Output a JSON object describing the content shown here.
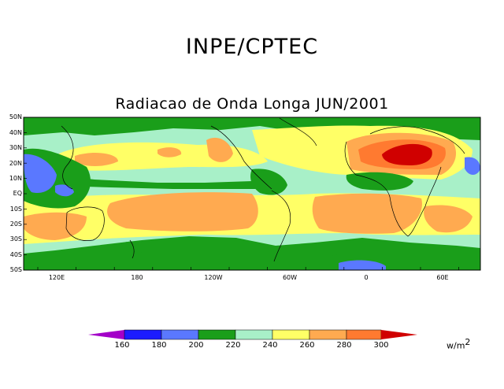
{
  "header": {
    "title": "INPE/CPTEC",
    "subtitle": "Radiacao de Onda Longa JUN/2001"
  },
  "map": {
    "lat_labels": [
      "50N",
      "40N",
      "30N",
      "20N",
      "10N",
      "EQ",
      "10S",
      "20S",
      "30S",
      "40S",
      "50S"
    ],
    "lon_labels": [
      "120E",
      "180",
      "120W",
      "60W",
      "0",
      "60E"
    ],
    "colors": {
      "c160": "#a300c8",
      "c180": "#1c1cff",
      "c200": "#5a78ff",
      "c220": "#1a9e1a",
      "c240": "#a8f0c8",
      "c260": "#ffff66",
      "c280": "#ffaa50",
      "c300": "#ff7a30",
      "c320": "#d00000"
    }
  },
  "colorbar": {
    "ticks": [
      "160",
      "180",
      "200",
      "220",
      "240",
      "260",
      "280",
      "300"
    ],
    "colors": [
      "#a300c8",
      "#1c1cff",
      "#5a78ff",
      "#1a9e1a",
      "#a8f0c8",
      "#ffff66",
      "#ffaa50",
      "#ff7a30",
      "#d00000"
    ],
    "unit": "w/m",
    "unit_exp": "2"
  }
}
